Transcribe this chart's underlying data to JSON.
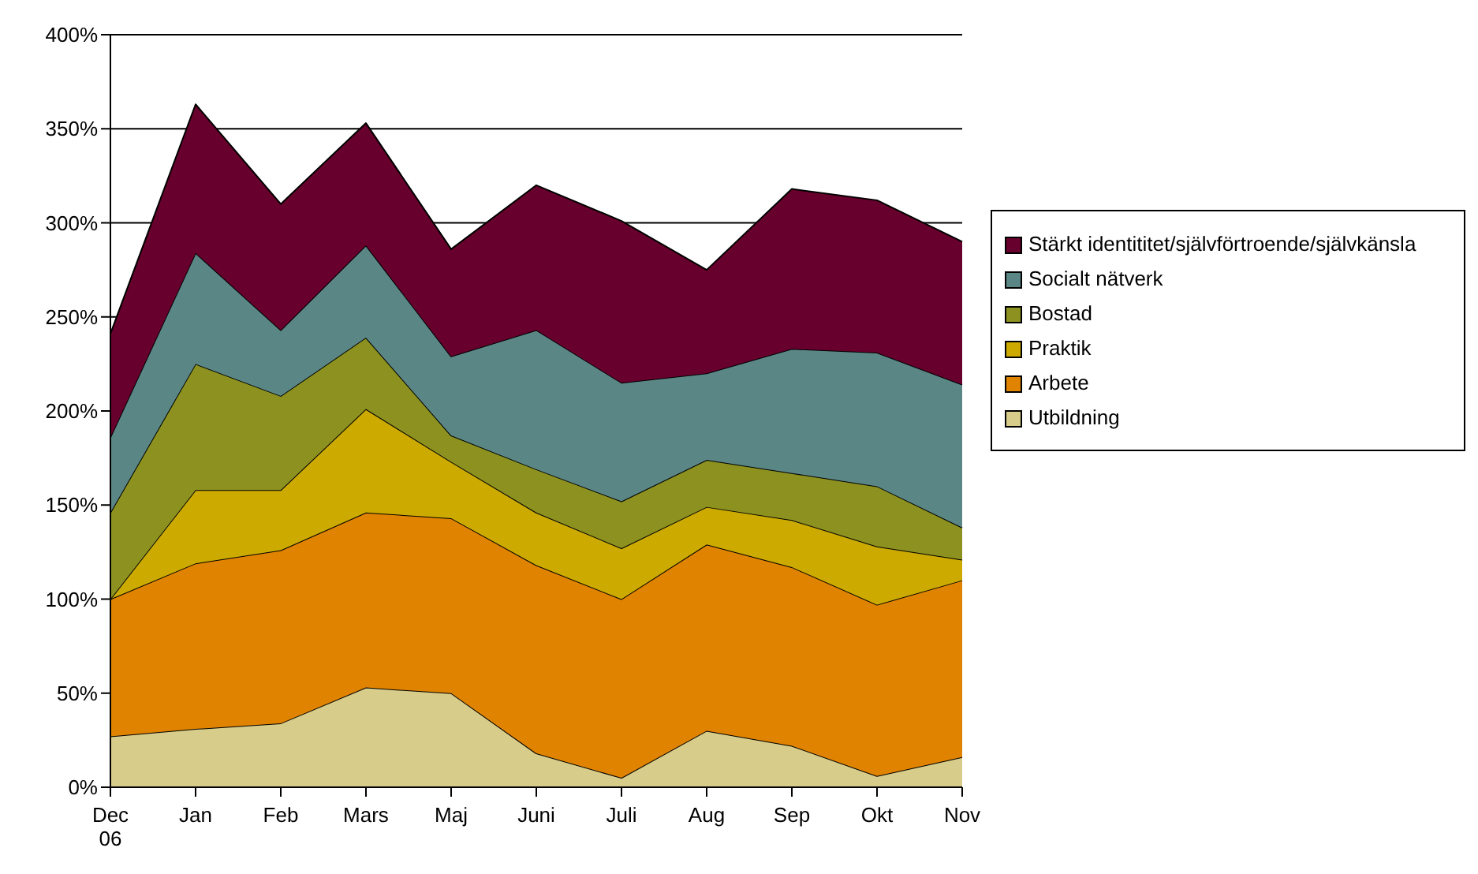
{
  "chart_data": {
    "type": "area",
    "stacked": true,
    "categories": [
      "Dec 06",
      "Jan",
      "Feb",
      "Mars",
      "Maj",
      "Juni",
      "Juli",
      "Aug",
      "Sep",
      "Okt",
      "Nov"
    ],
    "series": [
      {
        "name": "Utbildning",
        "color": "#d7cc8a",
        "values": [
          27,
          31,
          34,
          53,
          50,
          18,
          5,
          30,
          22,
          6,
          16
        ]
      },
      {
        "name": "Arbete",
        "color": "#e08300",
        "values": [
          73,
          88,
          92,
          93,
          93,
          100,
          95,
          99,
          95,
          91,
          94
        ]
      },
      {
        "name": "Praktik",
        "color": "#ccaa00",
        "values": [
          0,
          39,
          32,
          55,
          30,
          28,
          27,
          20,
          25,
          31,
          11
        ]
      },
      {
        "name": "Bostad",
        "color": "#8c9120",
        "values": [
          46,
          67,
          50,
          38,
          14,
          23,
          25,
          25,
          25,
          32,
          17
        ]
      },
      {
        "name": "Socialt nätverk",
        "color": "#5a8786",
        "values": [
          40,
          59,
          35,
          49,
          42,
          74,
          63,
          46,
          66,
          71,
          76
        ]
      },
      {
        "name": "Stärkt identititet/självförtroende/självkänsla",
        "color": "#67002c",
        "values": [
          55,
          79,
          67,
          65,
          57,
          77,
          86,
          55,
          85,
          81,
          76
        ]
      }
    ],
    "ylim": [
      0,
      400
    ],
    "yticks": [
      {
        "value": 0,
        "label": "0%"
      },
      {
        "value": 50,
        "label": "50%"
      },
      {
        "value": 100,
        "label": "100%"
      },
      {
        "value": 150,
        "label": "150%"
      },
      {
        "value": 200,
        "label": "200%"
      },
      {
        "value": 250,
        "label": "250%"
      },
      {
        "value": 300,
        "label": "300%"
      },
      {
        "value": 350,
        "label": "350%"
      },
      {
        "value": 400,
        "label": "400%"
      }
    ],
    "grid": "y",
    "legend": "right"
  }
}
